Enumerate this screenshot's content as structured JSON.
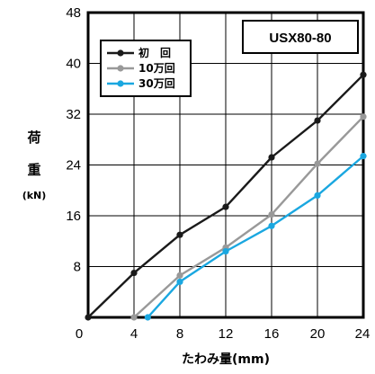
{
  "chart_data": {
    "type": "line",
    "title": "USX80-80",
    "xlabel": "たわみ量(mm)",
    "ylabel_chars": [
      "荷",
      "重"
    ],
    "ylabel_unit": "(kN)",
    "xlim": [
      0,
      24
    ],
    "ylim": [
      0,
      48
    ],
    "xticks": [
      "0",
      "4",
      "8",
      "12",
      "16",
      "20",
      "24"
    ],
    "yticks": [
      "8",
      "16",
      "24",
      "32",
      "40",
      "48"
    ],
    "grid": true,
    "legend_position": "top-left",
    "series": [
      {
        "name": "初　回",
        "color": "#1a1a1a",
        "x": [
          0,
          4,
          8,
          12,
          16,
          20,
          24
        ],
        "y": [
          0,
          7,
          13,
          17.4,
          25.2,
          31,
          38.2
        ]
      },
      {
        "name": "10万回",
        "color": "#999999",
        "x": [
          4,
          8,
          12,
          16,
          20,
          24
        ],
        "y": [
          0,
          6.6,
          11,
          16.2,
          24.2,
          31.6
        ]
      },
      {
        "name": "30万回",
        "color": "#1aa7e0",
        "x": [
          5.2,
          8,
          12,
          16,
          20,
          24
        ],
        "y": [
          0,
          5.6,
          10.4,
          14.4,
          19.2,
          25.4
        ]
      }
    ]
  }
}
